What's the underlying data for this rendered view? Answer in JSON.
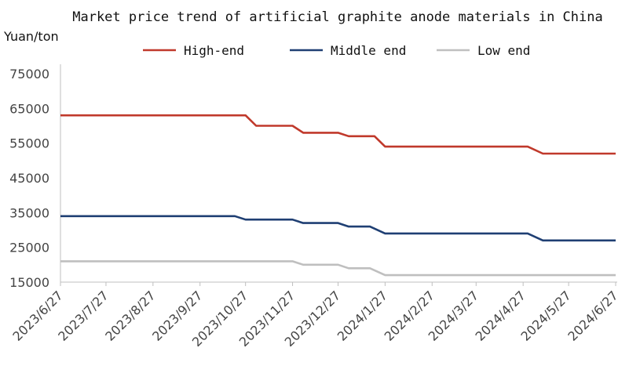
{
  "chart_data": {
    "type": "line",
    "title": "Market price trend of artificial graphite anode materials in China",
    "ylabel": "Yuan/ton",
    "xlabel": "",
    "ylim": [
      15000,
      75000
    ],
    "yticks": [
      15000,
      25000,
      35000,
      45000,
      55000,
      65000,
      75000
    ],
    "grid": false,
    "legend_position": "top",
    "categories": [
      "2023/6/27",
      "2023/7/27",
      "2023/8/27",
      "2023/9/27",
      "2023/10/27",
      "2023/11/27",
      "2023/12/27",
      "2024/1/27",
      "2024/2/27",
      "2024/3/27",
      "2024/4/27",
      "2024/5/27",
      "2024/6/27"
    ],
    "series": [
      {
        "name": "High-end",
        "color": "#c0392b",
        "x": [
          "2023/6/27",
          "2023/10/27",
          "2023/11/3",
          "2023/11/27",
          "2023/12/4",
          "2023/12/27",
          "2024/1/3",
          "2024/1/20",
          "2024/1/27",
          "2024/4/30",
          "2024/5/10",
          "2024/6/27"
        ],
        "values": [
          63000,
          63000,
          60000,
          60000,
          58000,
          58000,
          57000,
          57000,
          54000,
          54000,
          52000,
          52000
        ]
      },
      {
        "name": "Middle end",
        "color": "#1f3f73",
        "x": [
          "2023/6/27",
          "2023/10/20",
          "2023/10/27",
          "2023/11/27",
          "2023/12/4",
          "2023/12/27",
          "2024/1/3",
          "2024/1/17",
          "2024/1/27",
          "2024/4/30",
          "2024/5/10",
          "2024/6/27"
        ],
        "values": [
          34000,
          34000,
          33000,
          33000,
          32000,
          32000,
          31000,
          31000,
          29000,
          29000,
          27000,
          27000
        ]
      },
      {
        "name": "Low end",
        "color": "#bfbfbf",
        "x": [
          "2023/6/27",
          "2023/11/27",
          "2023/12/4",
          "2023/12/27",
          "2024/1/3",
          "2024/1/17",
          "2024/1/27",
          "2024/6/27"
        ],
        "values": [
          21000,
          21000,
          20000,
          20000,
          19000,
          19000,
          17000,
          17000
        ]
      }
    ]
  }
}
